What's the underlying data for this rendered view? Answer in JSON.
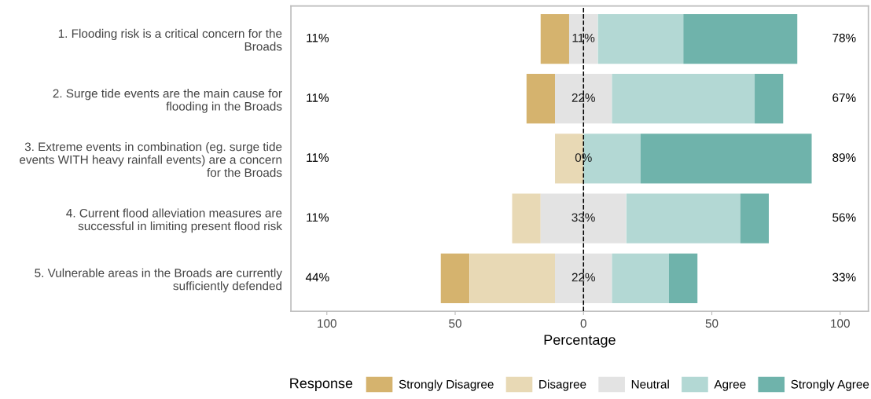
{
  "chart_data": {
    "type": "bar",
    "orientation": "horizontal",
    "xlabel": "Percentage",
    "legend_title": "Response",
    "legend": "bottom",
    "categories": [
      "1. Flooding risk is a critical concern for the\nBroads",
      "2. Surge tide events are the main cause for\nflooding in the Broads",
      "3. Extreme events in combination (eg. surge tide\nevents WITH heavy rainfall events) are a concern\nfor the Broads",
      "4. Current flood alleviation measures are\nsuccessful in limiting present flood risk",
      "5. Vulnerable areas in the Broads are currently\nsufficiently defended"
    ],
    "series": [
      {
        "name": "Strongly Disagree",
        "color": "#d5b36e",
        "base": [
          -16.7,
          -22.2,
          null,
          null,
          -55.6
        ],
        "values": [
          11.1,
          11.1,
          null,
          null,
          11.1
        ]
      },
      {
        "name": "Disagree",
        "color": "#e8d9b5",
        "base": [
          null,
          null,
          -11.1,
          -27.8,
          -44.4
        ],
        "values": [
          null,
          null,
          11.1,
          11.1,
          33.3
        ]
      },
      {
        "name": "Neutral",
        "color": "#e3e3e3",
        "base": [
          -5.6,
          -11.1,
          null,
          -16.7,
          -11.1
        ],
        "values": [
          11.1,
          22.2,
          0,
          33.3,
          22.2
        ],
        "value_labels": [
          "11%",
          "22%",
          "0%",
          "33%",
          "22%"
        ]
      },
      {
        "name": "Agree",
        "color": "#b3d8d4",
        "base": [
          5.6,
          11.1,
          0,
          16.7,
          11.1
        ],
        "values": [
          33.3,
          55.6,
          22.2,
          44.4,
          22.2
        ]
      },
      {
        "name": "Strongly Agree",
        "color": "#6fb3ab",
        "base": [
          38.9,
          66.7,
          22.2,
          61.1,
          33.3
        ],
        "values": [
          44.4,
          11.1,
          66.7,
          11.1,
          11.1
        ]
      }
    ],
    "xlim": [
      -114,
      111
    ],
    "xticks": [
      {
        "value": -100,
        "label": "100"
      },
      {
        "value": -50,
        "label": "50"
      },
      0,
      50,
      100
    ],
    "grid": false,
    "ref_lines": [
      {
        "axis": "x",
        "value": 0,
        "color": "#000000",
        "line_style": "dashed"
      }
    ],
    "annotations": [
      "11%",
      "11%",
      "11%",
      "11%",
      "44%",
      "78%",
      "67%",
      "89%",
      "56%",
      "33%"
    ]
  }
}
